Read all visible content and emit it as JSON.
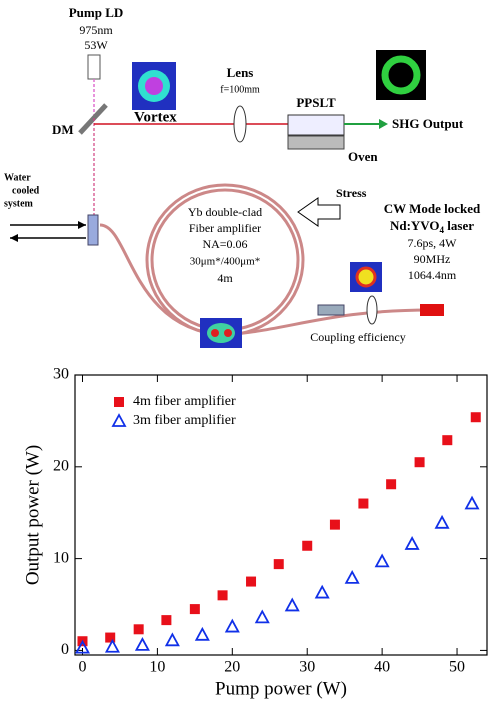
{
  "diagram": {
    "pump_ld": {
      "title": "Pump LD",
      "wavelength": "975nm",
      "power": "53W"
    },
    "dm": "DM",
    "vortex": "Vortex",
    "lens": {
      "title": "Lens",
      "focal": "f=100mm"
    },
    "crystal": "PPSLT",
    "oven": "Oven",
    "output": "SHG Output",
    "water": [
      "Water",
      "cooled",
      "system"
    ],
    "stress": "Stress",
    "fiber": [
      "Yb double-clad",
      "Fiber amplifier",
      "NA=0.06",
      "30μm*/400μm*",
      "4m"
    ],
    "seed": {
      "line1": "CW Mode locked",
      "line2_parts": [
        "Nd:YVO",
        "4",
        " laser"
      ],
      "specs": [
        "7.6ps, 4W",
        "90MHz",
        "1064.4nm"
      ]
    },
    "coupling": "Coupling efficiency"
  },
  "chart_data": {
    "type": "scatter",
    "xlabel": "Pump power (W)",
    "ylabel": "Output power (W)",
    "xlim": [
      -1,
      54
    ],
    "ylim": [
      -0.5,
      30
    ],
    "xticks": [
      0,
      10,
      20,
      30,
      40,
      50
    ],
    "yticks": [
      0,
      10,
      20,
      30
    ],
    "legend": "upper left",
    "series": [
      {
        "name": "4m fiber amplifier",
        "color": "#e8101a",
        "marker": "square",
        "x": [
          0,
          3.7,
          7.5,
          11.2,
          15,
          18.7,
          22.5,
          26.2,
          30,
          33.7,
          37.5,
          41.2,
          45,
          48.7,
          52.5
        ],
        "values": [
          1,
          1.4,
          2.3,
          3.3,
          4.5,
          6,
          7.5,
          9.4,
          11.4,
          13.7,
          16,
          18.1,
          20.5,
          22.9,
          25.4
        ]
      },
      {
        "name": "3m fiber amplifier",
        "color": "#1030e8",
        "marker": "triangle",
        "x": [
          0,
          4,
          8,
          12,
          16,
          20,
          24,
          28,
          32,
          36,
          40,
          44,
          48,
          52
        ],
        "values": [
          0.3,
          0.4,
          0.6,
          1.1,
          1.7,
          2.6,
          3.6,
          4.9,
          6.3,
          7.9,
          9.7,
          11.6,
          13.9,
          16
        ]
      }
    ]
  }
}
